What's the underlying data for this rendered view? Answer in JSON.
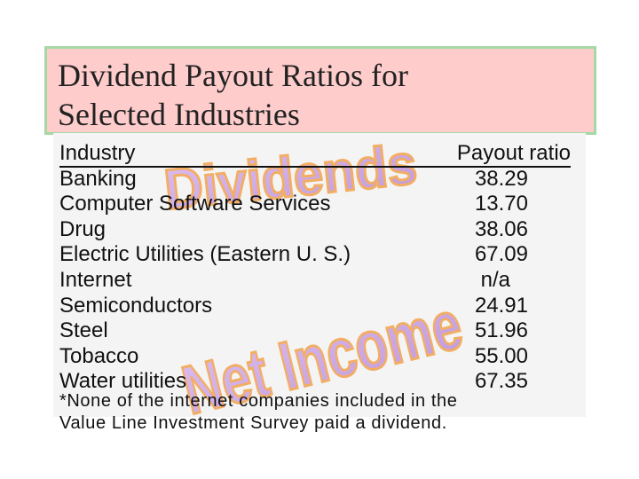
{
  "title": {
    "line1": "Dividend Payout Ratios for",
    "line2": "Selected Industries"
  },
  "table": {
    "headers": {
      "industry": "Industry",
      "ratio": "Payout ratio"
    },
    "rows": [
      {
        "industry": "Banking",
        "ratio": "38.29"
      },
      {
        "industry": "Computer Software Services",
        "ratio": "13.70"
      },
      {
        "industry": "Drug",
        "ratio": "38.06"
      },
      {
        "industry": "Electric Utilities (Eastern U. S.)",
        "ratio": "67.09"
      },
      {
        "industry": "Internet",
        "ratio": "n/a"
      },
      {
        "industry": "Semiconductors",
        "ratio": "24.91"
      },
      {
        "industry": "Steel",
        "ratio": "51.96"
      },
      {
        "industry": "Tobacco",
        "ratio": "55.00"
      },
      {
        "industry": "Water utilities",
        "ratio": "67.35"
      }
    ]
  },
  "footnote": {
    "line1": "*None of the internet companies included in the",
    "line2": "Value Line Investment Survey paid a dividend."
  },
  "watermark": {
    "word1": "Dividends",
    "word2": "Net Income"
  },
  "colors": {
    "title_bg": "#ffcccc",
    "title_border": "#a6d8a6",
    "watermark_fill": "#c9a0e0",
    "watermark_stroke": "#f2a24a",
    "text": "#111111"
  }
}
